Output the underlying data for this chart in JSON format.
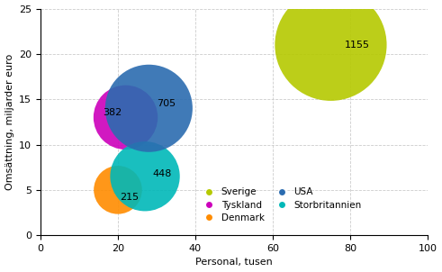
{
  "countries": [
    "Sverige",
    "USA",
    "Tyskland",
    "Storbritannien",
    "Denmark"
  ],
  "x": [
    75,
    28,
    22,
    27,
    20
  ],
  "y": [
    21,
    14,
    13,
    6.5,
    5
  ],
  "subsidiaries": [
    1155,
    705,
    382,
    448,
    215
  ],
  "labels": [
    "1155",
    "705",
    "382",
    "448",
    "215"
  ],
  "colors": [
    "#b5c900",
    "#2b6cb0",
    "#cc00bb",
    "#00b8b8",
    "#ff8c00"
  ],
  "label_offsets_x": [
    3.5,
    2.0,
    -6.0,
    2.0,
    0.5
  ],
  "label_offsets_y": [
    0,
    0.5,
    0.5,
    0.3,
    -0.8
  ],
  "ylabel": "Omsättning, miljarder euro",
  "xlabel": "Personal, tusen",
  "xlim": [
    0,
    100
  ],
  "ylim": [
    0,
    25
  ],
  "xticks": [
    0,
    20,
    40,
    60,
    80,
    100
  ],
  "yticks": [
    0,
    5,
    10,
    15,
    20,
    25
  ],
  "legend_names_col1": [
    "Sverige",
    "Tyskland",
    "Denmark"
  ],
  "legend_names_col2": [
    "USA",
    "Storbritannien"
  ],
  "legend_colors_col1": [
    "#b5c900",
    "#cc00bb",
    "#ff8c00"
  ],
  "legend_colors_col2": [
    "#2b6cb0",
    "#00b8b8"
  ],
  "ref_size": 8000,
  "alpha": 0.9
}
